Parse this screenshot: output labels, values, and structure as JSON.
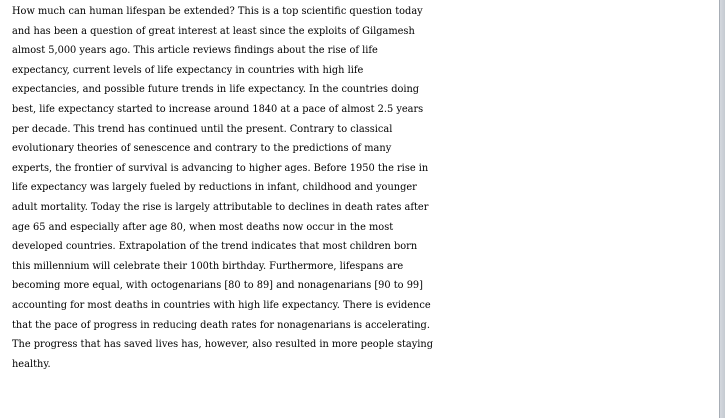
{
  "document": {
    "lines": [
      "How much can human lifespan be extended? This is a top scientific question today",
      "and has been a question of great interest at least since the exploits of Gilgamesh",
      "almost 5,000 years ago. This article reviews findings about the rise of life",
      "expectancy, current levels of life expectancy in countries with high life",
      "expectancies, and possible future trends in life expectancy. In the countries doing",
      "best, life expectancy started to increase around 1840 at a pace of almost 2.5 years",
      "per decade. This trend has continued until the present. Contrary to classical",
      "evolutionary theories of senescence and contrary to the predictions of many",
      "experts, the frontier of survival is advancing to higher ages. Before 1950 the rise in",
      "life expectancy was largely fueled by reductions in infant, childhood and younger",
      "adult mortality. Today the rise is largely attributable to declines in death rates after",
      "age 65 and especially after age 80, when most deaths now occur in the most",
      "developed countries. Extrapolation of the trend indicates that most children born",
      "this millennium will celebrate their 100th birthday. Furthermore, lifespans are",
      "becoming more equal, with octogenarians [80 to 89] and nonagenarians [90 to 99]",
      "accounting for most deaths in countries with high life expectancy. There is evidence",
      "that the pace of progress in reducing death rates for nonagenarians is accelerating.",
      "The progress that has saved lives has, however, also resulted in more people staying",
      "healthy."
    ]
  }
}
